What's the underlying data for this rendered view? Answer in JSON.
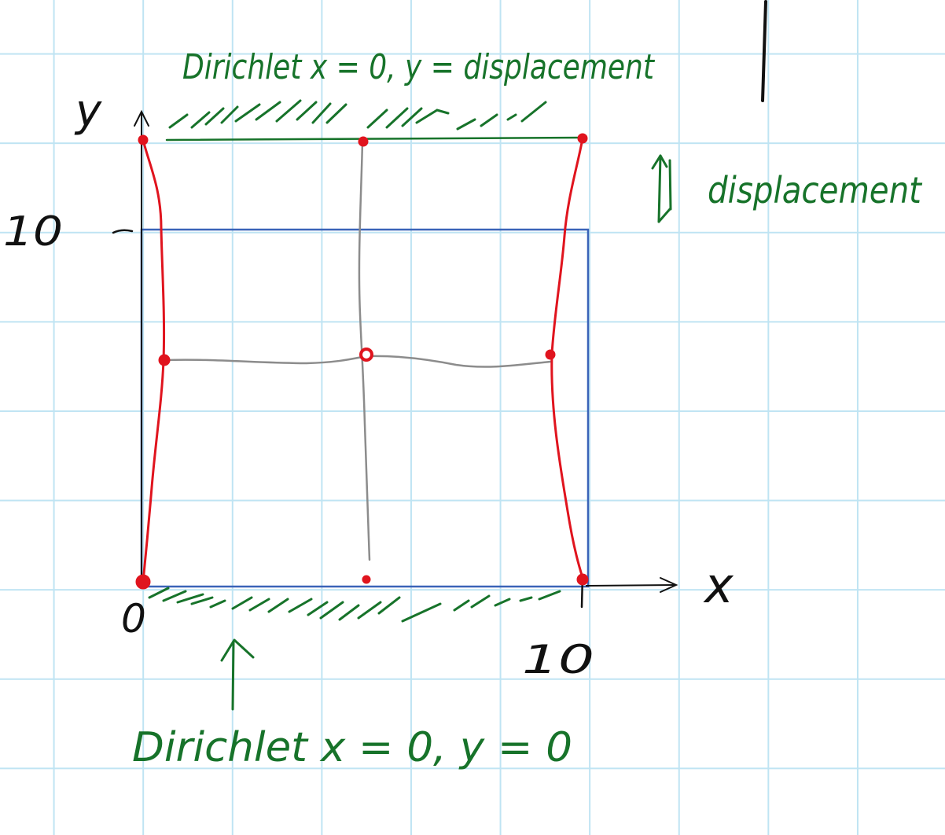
{
  "labels": {
    "top_bc": "Dirichlet x = 0, y = displacement",
    "displacement": "displacement",
    "bottom_bc": "Dirichlet x = 0, y = 0",
    "axis_x": "x",
    "axis_y": "y",
    "tick_y_10": "10",
    "tick_x_10": "10",
    "origin": "0"
  },
  "colors": {
    "boundary_conditions": "#17732a",
    "original_domain": "#3a63b8",
    "deformed_edges": "#e0141e",
    "interior_mesh": "#8c8c8c",
    "nodes": "#e0141e",
    "axes": "#111111",
    "grid": "#bfe4f3"
  }
}
